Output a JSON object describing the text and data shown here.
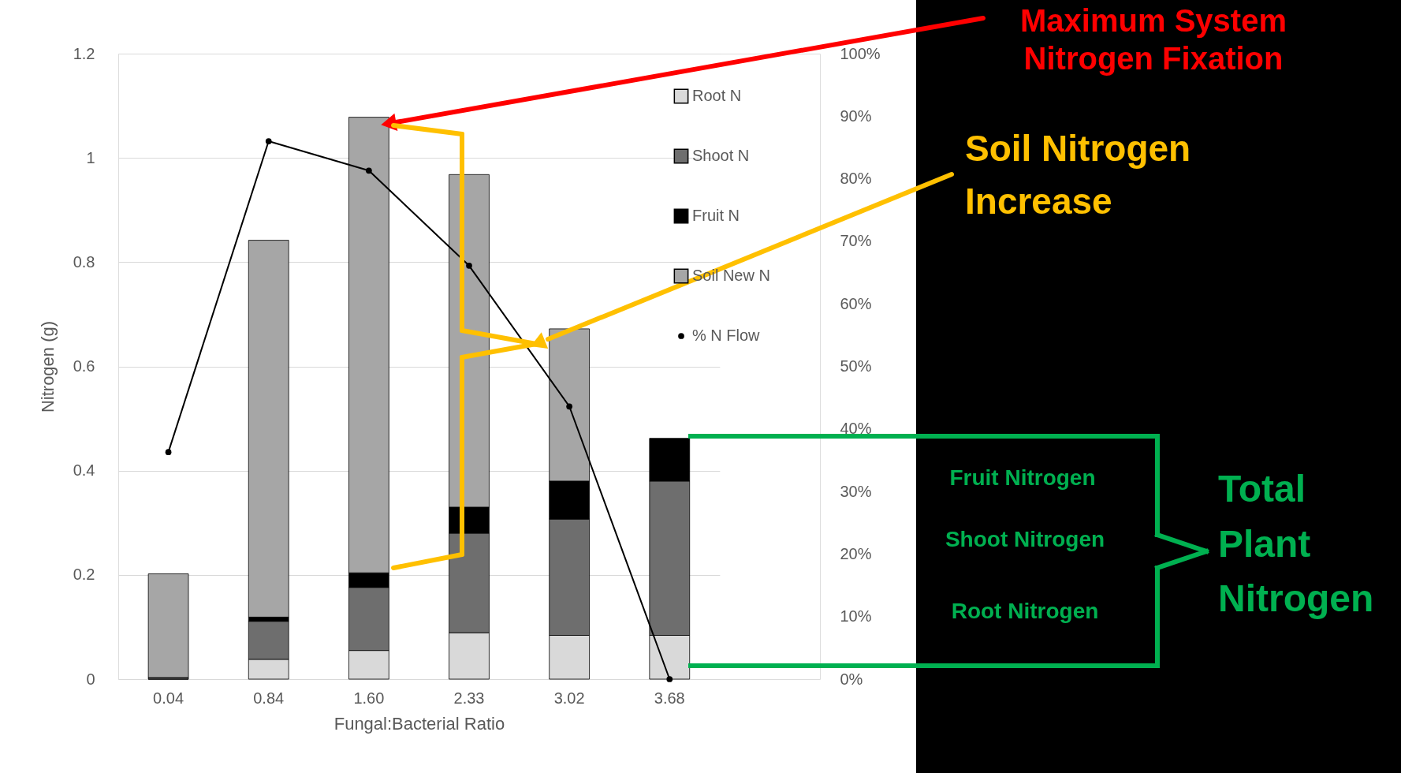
{
  "chart_data": {
    "type": "bar",
    "stacked": true,
    "xlabel": "Fungal:Bacterial Ratio",
    "ylabel": "Nitrogen (g)",
    "categories": [
      "0.04",
      "0.84",
      "1.60",
      "2.33",
      "3.02",
      "3.68"
    ],
    "series": [
      {
        "name": "Root N",
        "color": "#d9d9d9",
        "values": [
          0.0,
          0.038,
          0.055,
          0.089,
          0.084,
          0.084
        ]
      },
      {
        "name": "Shoot N",
        "color": "#6e6e6e",
        "values": [
          0.003,
          0.073,
          0.121,
          0.191,
          0.223,
          0.296
        ]
      },
      {
        "name": "Fruit N",
        "color": "#000000",
        "values": [
          0.0,
          0.008,
          0.028,
          0.05,
          0.073,
          0.082
        ]
      },
      {
        "name": "Soil New N",
        "color": "#a6a6a6",
        "values": [
          0.199,
          0.723,
          0.874,
          0.638,
          0.292,
          null
        ]
      },
      {
        "name": "% N Flow",
        "type": "line",
        "axis": "y2",
        "color": "#000000",
        "values": [
          36.3,
          86.0,
          81.3,
          66.1,
          43.6,
          0.0
        ]
      }
    ],
    "ylim": [
      0,
      1.2
    ],
    "yticks": [
      0,
      0.2,
      0.4,
      0.6,
      0.8,
      1,
      1.2
    ],
    "y2lim": [
      0,
      100
    ],
    "y2ticks": [
      {
        "value": 0,
        "label": "0%"
      },
      {
        "value": 10,
        "label": "10%"
      },
      {
        "value": 20,
        "label": "20%"
      },
      {
        "value": 30,
        "label": "30%"
      },
      {
        "value": 40,
        "label": "40%"
      },
      {
        "value": 50,
        "label": "50%"
      },
      {
        "value": 60,
        "label": "60%"
      },
      {
        "value": 70,
        "label": "70%"
      },
      {
        "value": 80,
        "label": "80%"
      },
      {
        "value": 90,
        "label": "90%"
      },
      {
        "value": 100,
        "label": "100%"
      }
    ],
    "grid": "y",
    "legend": "top right",
    "marker": "circle",
    "line_style": "solid",
    "annotations": [
      "Maximum System\nNitrogen Fixation",
      "Soil Nitrogen\nIncrease",
      "Fruit Nitrogen",
      "Shoot Nitrogen",
      "Root Nitrogen",
      "Total\nPlant\nNitrogen"
    ]
  }
}
